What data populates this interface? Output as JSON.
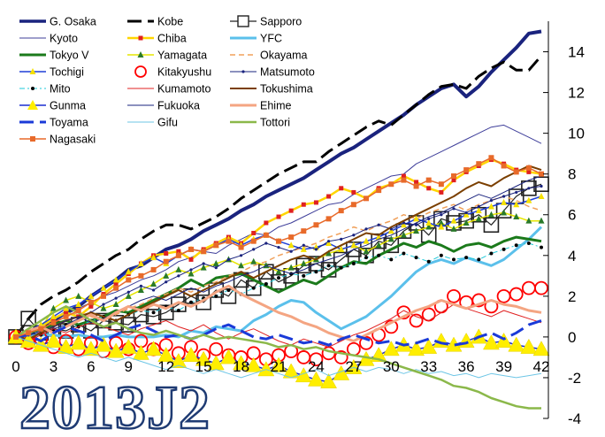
{
  "chart_data": {
    "type": "line",
    "title": "",
    "xlabel": "",
    "ylabel": "",
    "x_ticks": [
      0,
      3,
      6,
      9,
      12,
      15,
      18,
      21,
      24,
      27,
      30,
      33,
      36,
      39,
      42
    ],
    "y_ticks": [
      -4,
      -2,
      0,
      2,
      4,
      6,
      8,
      10,
      12,
      14
    ],
    "xlim": [
      0,
      42
    ],
    "ylim": [
      -4,
      15.5
    ],
    "y_axis_position": "right",
    "grid": false,
    "legend_position": "top-left",
    "watermark_text": "2013J2",
    "series": [
      {
        "name": "G. Osaka",
        "color": "#1a237e",
        "marker": "none",
        "dash": "solid",
        "width": 4,
        "values": [
          0,
          0.2,
          0.5,
          0.8,
          1.2,
          1.5,
          2.0,
          2.4,
          2.8,
          3.3,
          3.5,
          3.9,
          4.3,
          4.5,
          4.8,
          5.2,
          5.5,
          5.8,
          6.2,
          6.5,
          6.9,
          7.2,
          7.5,
          7.8,
          8.2,
          8.6,
          9.0,
          9.3,
          9.7,
          10.1,
          10.5,
          10.9,
          11.4,
          11.8,
          12.2,
          12.4,
          11.8,
          12.3,
          13.0,
          13.6,
          14.2,
          14.9,
          15.0
        ]
      },
      {
        "name": "Kobe",
        "color": "#000000",
        "marker": "none",
        "dash": "long",
        "width": 3,
        "values": [
          0,
          0.9,
          1.6,
          2.0,
          2.3,
          2.7,
          3.2,
          3.6,
          4.0,
          4.3,
          4.8,
          5.2,
          5.5,
          5.5,
          5.3,
          5.6,
          5.9,
          6.3,
          6.8,
          7.2,
          7.6,
          8.0,
          8.3,
          8.6,
          8.6,
          9.1,
          9.5,
          9.9,
          10.3,
          10.6,
          10.4,
          10.9,
          11.4,
          11.9,
          12.3,
          12.4,
          12.2,
          12.8,
          13.2,
          13.5,
          13.1,
          13.1,
          13.8
        ]
      },
      {
        "name": "Sapporo",
        "color": "#222222",
        "marker": "square",
        "dash": "solid",
        "width": 1.2,
        "marker_size": 8,
        "values": [
          0,
          0.9,
          0.2,
          0.4,
          0.3,
          0.6,
          0.3,
          0.8,
          0.7,
          0.6,
          1.1,
          1.0,
          1.2,
          1.6,
          2.0,
          1.7,
          2.3,
          2.0,
          2.8,
          2.4,
          3.2,
          2.7,
          3.0,
          3.5,
          3.6,
          3.3,
          3.8,
          4.3,
          4.0,
          4.7,
          4.5,
          5.2,
          5.6,
          5.0,
          5.8,
          5.6,
          5.7,
          6.0,
          5.5,
          6.2,
          6.9,
          7.3,
          7.5
        ]
      },
      {
        "name": "Kyoto",
        "color": "#3f3f9a",
        "marker": "none",
        "dash": "solid",
        "width": 1,
        "values": [
          0,
          0.3,
          0.6,
          0.9,
          1.1,
          1.4,
          1.7,
          2.0,
          2.2,
          2.5,
          2.8,
          3.0,
          3.3,
          3.7,
          3.9,
          4.2,
          4.1,
          4.5,
          4.8,
          5.1,
          5.0,
          5.4,
          5.6,
          5.9,
          6.2,
          6.5,
          6.6,
          7.0,
          7.3,
          7.6,
          7.9,
          8.0,
          8.5,
          8.8,
          9.1,
          9.4,
          9.7,
          10.0,
          10.3,
          10.4,
          10.1,
          9.8,
          9.5
        ]
      },
      {
        "name": "Chiba",
        "color": "#ffd600",
        "marker": "dot-red",
        "dash": "solid",
        "width": 2.5,
        "values": [
          0,
          0.2,
          0.5,
          0.9,
          1.2,
          1.0,
          1.5,
          2.1,
          2.6,
          3.1,
          3.6,
          4.0,
          4.1,
          4.2,
          3.8,
          4.3,
          4.6,
          4.9,
          4.6,
          5.1,
          5.6,
          5.9,
          6.2,
          6.5,
          6.6,
          6.9,
          7.3,
          7.1,
          6.8,
          7.3,
          7.5,
          7.9,
          7.6,
          7.3,
          7.1,
          7.7,
          8.1,
          8.4,
          8.7,
          8.5,
          8.2,
          8.1,
          8.0
        ]
      },
      {
        "name": "YFC",
        "color": "#5bc0eb",
        "marker": "none",
        "dash": "solid",
        "width": 3,
        "values": [
          0,
          0.1,
          0.1,
          0.1,
          0,
          0.1,
          0,
          0,
          0.1,
          0,
          0,
          0,
          0.1,
          0,
          0.3,
          0.2,
          0.5,
          0.4,
          0.3,
          0.8,
          1.1,
          1.5,
          1.8,
          1.7,
          1.2,
          0.8,
          0.4,
          0.7,
          1.0,
          1.5,
          2.0,
          2.6,
          3.2,
          3.6,
          3.8,
          3.6,
          3.9,
          3.7,
          3.5,
          3.8,
          4.3,
          4.8,
          5.4
        ]
      },
      {
        "name": "Tokyo V",
        "color": "#1b7a1b",
        "marker": "none",
        "dash": "solid",
        "width": 3,
        "values": [
          0,
          0.2,
          0.4,
          0.6,
          0.8,
          0.6,
          0.8,
          1.0,
          1.3,
          1.2,
          1.5,
          1.8,
          2.1,
          2.4,
          2.8,
          2.5,
          2.9,
          3.0,
          3.1,
          2.8,
          2.5,
          2.2,
          2.5,
          2.8,
          2.6,
          3.0,
          3.4,
          3.7,
          3.6,
          4.0,
          4.3,
          4.6,
          4.4,
          4.7,
          4.5,
          4.2,
          4.5,
          4.6,
          4.4,
          4.7,
          4.9,
          4.8,
          4.7
        ]
      },
      {
        "name": "Yamagata",
        "color": "#e6e600",
        "marker": "tri-small",
        "dash": "solid",
        "width": 1.5,
        "values": [
          0,
          0.2,
          0.4,
          1.4,
          1.8,
          2.0,
          1.7,
          1.4,
          1.6,
          2.0,
          2.3,
          2.6,
          3.0,
          3.3,
          3.1,
          3.4,
          3.6,
          3.8,
          3.5,
          3.7,
          3.5,
          3.2,
          3.4,
          3.6,
          3.8,
          4.1,
          4.3,
          4.5,
          4.2,
          4.5,
          4.8,
          5.0,
          5.2,
          5.4,
          5.6,
          5.3,
          5.6,
          5.8,
          6.0,
          6.1,
          5.9,
          5.7,
          5.7
        ]
      },
      {
        "name": "Okayama",
        "color": "#f0a05a",
        "marker": "none",
        "dash": "short",
        "width": 1.5,
        "values": [
          0,
          0.3,
          0.5,
          0.7,
          1.0,
          1.2,
          1.0,
          0.8,
          1.1,
          1.4,
          1.6,
          1.9,
          2.1,
          2.4,
          2.2,
          2.5,
          2.7,
          3.0,
          3.2,
          3.5,
          3.7,
          4.0,
          4.2,
          4.4,
          4.6,
          4.9,
          5.1,
          5.4,
          5.2,
          5.5,
          5.7,
          6.0,
          5.8,
          6.1,
          6.3,
          6.5,
          6.2,
          6.5,
          6.7,
          6.9,
          6.7,
          6.4,
          6.2
        ]
      },
      {
        "name": "Tochigi",
        "color": "#1e3fd6",
        "marker": "tri-small-yellow",
        "dash": "solid",
        "width": 1.5,
        "values": [
          0,
          0.3,
          0.6,
          1.0,
          1.4,
          1.6,
          2.0,
          2.4,
          2.8,
          3.2,
          3.6,
          3.9,
          3.6,
          4.0,
          4.3,
          4.2,
          4.5,
          4.8,
          4.5,
          4.8,
          5.0,
          4.7,
          4.5,
          4.3,
          4.4,
          4.6,
          4.3,
          4.5,
          4.7,
          4.9,
          5.2,
          5.5,
          5.8,
          5.6,
          5.4,
          5.7,
          6.0,
          6.2,
          6.4,
          6.6,
          6.5,
          6.7,
          6.9
        ]
      },
      {
        "name": "Kitakyushu",
        "color": "#ff0000",
        "marker": "circle-open",
        "dash": "none",
        "width": 1.8,
        "marker_size": 7,
        "values": [
          0,
          -0.3,
          -0.1,
          -0.5,
          -0.2,
          -0.6,
          -0.3,
          -0.7,
          -0.3,
          -0.6,
          -0.2,
          -0.6,
          -0.4,
          -0.8,
          -0.5,
          -0.9,
          -0.6,
          -0.9,
          -1.0,
          -0.8,
          -1.1,
          -0.9,
          -0.7,
          -1.0,
          -1.1,
          -0.8,
          -1.0,
          -0.6,
          -0.3,
          0.1,
          0.5,
          1.2,
          0.8,
          1.1,
          1.5,
          2.0,
          1.7,
          1.8,
          1.5,
          2.0,
          2.1,
          2.4,
          2.4
        ]
      },
      {
        "name": "Matsumoto",
        "color": "#1a237e",
        "marker": "dot-small",
        "dash": "solid",
        "width": 1,
        "values": [
          0,
          0.1,
          0.2,
          0.4,
          0.6,
          0.9,
          1.2,
          1.6,
          1.9,
          2.2,
          2.5,
          2.3,
          2.7,
          3.0,
          3.3,
          3.6,
          3.4,
          3.8,
          4.0,
          4.3,
          4.6,
          4.4,
          4.2,
          4.5,
          4.3,
          4.7,
          4.8,
          5.0,
          5.3,
          5.5,
          5.3,
          5.6,
          5.5,
          5.8,
          6.0,
          6.3,
          6.1,
          6.4,
          6.7,
          6.9,
          7.1,
          7.3,
          7.4
        ]
      },
      {
        "name": "Mito",
        "color": "#1ec8d8",
        "marker": "dot-black",
        "dash": "dashdot",
        "width": 1,
        "values": [
          0,
          0.2,
          0.1,
          0.3,
          0.6,
          0.5,
          0.8,
          1.0,
          0.8,
          1.1,
          1.3,
          1.2,
          1.5,
          1.3,
          1.7,
          1.9,
          2.0,
          2.3,
          2.1,
          2.4,
          2.6,
          2.9,
          3.1,
          3.0,
          3.2,
          3.5,
          3.4,
          3.6,
          3.9,
          4.0,
          3.8,
          4.1,
          3.9,
          3.7,
          4.0,
          3.8,
          3.9,
          3.8,
          4.1,
          4.3,
          4.5,
          4.6,
          4.4
        ]
      },
      {
        "name": "Kumamoto",
        "color": "#e02020",
        "marker": "none",
        "dash": "solid",
        "width": 1,
        "values": [
          0,
          -0.2,
          0.1,
          0.4,
          0.2,
          0.5,
          0.7,
          0.5,
          0.3,
          0.1,
          0.4,
          0.6,
          0.8,
          0.5,
          0.3,
          0.6,
          0.2,
          -0.1,
          0.2,
          0.4,
          0.1,
          -0.2,
          -0.4,
          -0.1,
          -0.3,
          -0.5,
          -0.2,
          0.1,
          0.3,
          0.6,
          0.9,
          1.3,
          1.0,
          0.8,
          1.2,
          1.6,
          1.4,
          1.2,
          1.0,
          1.3,
          1.1,
          0.9,
          0.7
        ]
      },
      {
        "name": "Tokushima",
        "color": "#7b3f00",
        "marker": "none",
        "dash": "solid",
        "width": 2,
        "values": [
          0,
          -0.1,
          0.2,
          0.5,
          0.8,
          1.0,
          1.2,
          1.0,
          0.8,
          1.1,
          1.4,
          1.7,
          2.0,
          2.3,
          2.0,
          2.3,
          2.6,
          2.9,
          3.2,
          2.9,
          3.2,
          3.5,
          3.8,
          4.0,
          3.8,
          4.2,
          4.5,
          4.8,
          5.1,
          5.0,
          5.4,
          5.7,
          6.0,
          6.3,
          6.6,
          6.9,
          7.3,
          7.6,
          7.4,
          7.8,
          8.1,
          8.4,
          8.2
        ]
      },
      {
        "name": "Gunma",
        "color": "#1c2fd0",
        "marker": "tri-yellow",
        "dash": "solid",
        "width": 1.5,
        "marker_size": 9,
        "values": [
          0,
          -0.2,
          -0.4,
          -0.2,
          -0.5,
          -0.3,
          -0.6,
          -0.4,
          -0.7,
          -0.5,
          -0.8,
          -0.6,
          -0.9,
          -1.2,
          -0.9,
          -1.1,
          -1.3,
          -1.0,
          -1.3,
          -1.4,
          -1.6,
          -1.4,
          -1.7,
          -1.9,
          -2.1,
          -2.2,
          -1.8,
          -1.5,
          -1.1,
          -0.9,
          -0.6,
          -0.4,
          -0.6,
          -0.5,
          -0.2,
          -0.4,
          -0.2,
          0.0,
          -0.3,
          -0.2,
          -0.4,
          -0.5,
          -0.6
        ]
      },
      {
        "name": "Fukuoka",
        "color": "#1a237e",
        "marker": "none",
        "dash": "solid",
        "width": 1,
        "values": [
          0,
          0.1,
          0.3,
          0.5,
          0.8,
          1.0,
          0.7,
          0.9,
          1.2,
          1.5,
          1.8,
          2.0,
          1.8,
          2.1,
          2.4,
          2.2,
          2.5,
          2.7,
          3.0,
          3.2,
          3.5,
          3.3,
          3.1,
          3.3,
          3.6,
          3.8,
          4.0,
          4.3,
          4.5,
          4.8,
          5.0,
          5.3,
          5.6,
          5.9,
          6.1,
          6.4,
          6.7,
          7.0,
          6.8,
          7.1,
          7.4,
          7.7,
          7.9
        ]
      },
      {
        "name": "Ehime",
        "color": "#f4a582",
        "marker": "none",
        "dash": "solid",
        "width": 3,
        "values": [
          0,
          0.3,
          0.5,
          0.2,
          0.5,
          0.8,
          1.1,
          0.8,
          1.2,
          1.5,
          1.3,
          1.6,
          1.4,
          1.7,
          1.5,
          1.8,
          2.2,
          2.5,
          2.1,
          1.8,
          1.5,
          1.2,
          1.0,
          0.7,
          0.5,
          0.2,
          0.0,
          -0.2,
          0.1,
          0.4,
          0.7,
          1.0,
          1.3,
          1.5,
          1.8,
          1.6,
          1.4,
          1.6,
          1.8,
          1.6,
          1.5,
          1.3,
          1.2
        ]
      },
      {
        "name": "Toyama",
        "color": "#1a3ad8",
        "marker": "none",
        "dash": "long",
        "width": 3,
        "values": [
          0,
          0.1,
          -0.2,
          0.2,
          0.5,
          0.3,
          0.1,
          -0.2,
          0.1,
          0.4,
          0.6,
          0.3,
          0.0,
          0.1,
          -0.1,
          0.1,
          0.4,
          0.6,
          0.3,
          0.0,
          -0.1,
          0.1,
          -0.1,
          -0.3,
          -0.2,
          -0.4,
          -0.1,
          0.1,
          -0.1,
          -0.3,
          -0.2,
          -0.4,
          -0.3,
          -0.1,
          -0.3,
          -0.4,
          -0.3,
          0.0,
          0.2,
          -0.1,
          0.2,
          0.6,
          0.8
        ]
      },
      {
        "name": "Gifu",
        "color": "#6ec6e6",
        "marker": "none",
        "dash": "solid",
        "width": 1,
        "values": [
          0,
          -0.2,
          -0.4,
          -0.6,
          -0.8,
          -1.0,
          -0.8,
          -1.0,
          -1.2,
          -1.0,
          -1.2,
          -1.4,
          -1.6,
          -1.4,
          -1.6,
          -1.8,
          -1.6,
          -1.8,
          -2.0,
          -1.8,
          -1.6,
          -1.8,
          -2.0,
          -1.8,
          -1.6,
          -1.9,
          -1.7,
          -1.5,
          -1.7,
          -1.5,
          -1.6,
          -1.8,
          -1.6,
          -1.8,
          -1.7,
          -1.9,
          -1.8,
          -2.0,
          -1.8,
          -1.9,
          -2.0,
          -1.9,
          -1.8
        ]
      },
      {
        "name": "Tottori",
        "color": "#8bb84a",
        "marker": "none",
        "dash": "solid",
        "width": 2.5,
        "values": [
          0,
          0.4,
          0.8,
          1.2,
          1.5,
          1.2,
          0.8,
          0.5,
          0.7,
          0.4,
          0.2,
          0.1,
          0.3,
          0.1,
          -0.1,
          0.1,
          -0.1,
          0.0,
          -0.1,
          -0.2,
          -0.3,
          -0.5,
          -0.4,
          -0.6,
          -0.5,
          -0.7,
          -0.8,
          -0.9,
          -1.0,
          -1.1,
          -1.3,
          -1.5,
          -1.7,
          -1.9,
          -2.1,
          -2.4,
          -2.5,
          -2.7,
          -3.0,
          -3.2,
          -3.4,
          -3.5,
          -3.5
        ]
      },
      {
        "name": "Nagasaki",
        "color": "#e86a2a",
        "marker": "square-small",
        "dash": "solid",
        "width": 1.5,
        "values": [
          0,
          0.2,
          0.4,
          0.7,
          1.0,
          1.3,
          1.7,
          2.0,
          2.4,
          2.8,
          3.0,
          3.3,
          3.7,
          4.0,
          4.3,
          4.2,
          4.5,
          4.7,
          4.4,
          4.7,
          5.0,
          4.7,
          4.9,
          5.2,
          5.5,
          5.8,
          6.2,
          6.5,
          6.8,
          7.2,
          7.5,
          7.7,
          7.4,
          7.7,
          7.5,
          7.9,
          8.2,
          8.5,
          8.8,
          8.4,
          8.1,
          8.3,
          8.0
        ]
      }
    ]
  }
}
